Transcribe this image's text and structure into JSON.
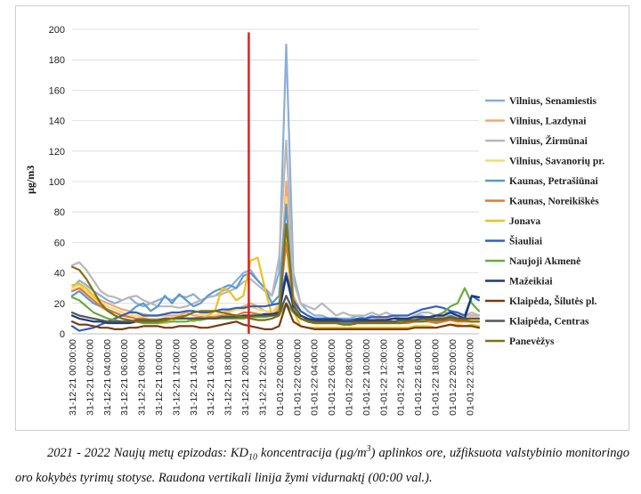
{
  "chart_data": {
    "type": "line",
    "ylabel": "µg/m3",
    "ylim": [
      0,
      200
    ],
    "yticks": [
      0,
      20,
      40,
      60,
      80,
      100,
      120,
      140,
      160,
      180,
      200
    ],
    "x_tick_labels": [
      "31-12-21 00:00:00",
      "31-12-21 02:00:00",
      "31-12-21 04:00:00",
      "31-12-21 06:00:00",
      "31-12-21 08:00:00",
      "31-12-21 10:00:00",
      "31-12-21 12:00:00",
      "31-12-21 14:00:00",
      "31-12-21 16:00:00",
      "31-12-21 18:00:00",
      "31-12-21 20:00:00",
      "31-12-21 22:00:00",
      "01-01-22 00:00:00",
      "01-01-22 02:00:00",
      "01-01-22 04:00:00",
      "01-01-22 06:00:00",
      "01-01-22 08:00:00",
      "01-01-22 10:00:00",
      "01-01-22 12:00:00",
      "01-01-22 14:00:00",
      "01-01-22 16:00:00",
      "01-01-22 18:00:00",
      "01-01-22 20:00:00",
      "01-01-22 22:00:00"
    ],
    "midnight_marker": {
      "x_index": 24,
      "top_value": 198,
      "color": "#e02020"
    },
    "grid": "horizontal",
    "legend_position": "right",
    "series": [
      {
        "name": "Vilnius, Senamiestis",
        "color": "#8aaedb",
        "values": [
          30,
          35,
          32,
          28,
          25,
          22,
          20,
          22,
          24,
          20,
          18,
          20,
          22,
          24,
          22,
          25,
          24,
          26,
          22,
          24,
          25,
          28,
          30,
          35,
          40,
          42,
          35,
          30,
          25,
          40,
          190,
          40,
          20,
          15,
          12,
          12,
          10,
          10,
          10,
          10,
          12,
          10,
          12,
          10,
          10,
          10,
          10,
          10,
          12,
          12,
          10,
          10,
          12,
          14,
          12,
          12,
          12,
          12
        ]
      },
      {
        "name": "Vilnius, Lazdynai",
        "color": "#f0a878",
        "values": [
          28,
          30,
          28,
          25,
          22,
          20,
          18,
          16,
          15,
          14,
          13,
          12,
          12,
          12,
          12,
          12,
          14,
          12,
          12,
          12,
          12,
          14,
          15,
          16,
          18,
          20,
          18,
          15,
          14,
          18,
          100,
          25,
          15,
          12,
          10,
          10,
          10,
          10,
          9,
          9,
          10,
          10,
          11,
          10,
          10,
          10,
          10,
          9,
          10,
          10,
          10,
          10,
          11,
          12,
          11,
          12,
          12,
          12
        ]
      },
      {
        "name": "Vilnius, Žirmūnai",
        "color": "#b8b8b8",
        "values": [
          45,
          47,
          42,
          35,
          28,
          25,
          24,
          22,
          24,
          25,
          22,
          20,
          18,
          18,
          18,
          17,
          18,
          20,
          22,
          24,
          25,
          26,
          28,
          30,
          34,
          36,
          32,
          28,
          25,
          50,
          127,
          35,
          20,
          18,
          16,
          20,
          16,
          12,
          14,
          12,
          12,
          12,
          14,
          12,
          14,
          12,
          10,
          10,
          12,
          14,
          14,
          12,
          14,
          14,
          14,
          12,
          14,
          12
        ]
      },
      {
        "name": "Vilnius, Savanorių pr.",
        "color": "#f4dc70",
        "values": [
          30,
          32,
          28,
          24,
          20,
          18,
          16,
          14,
          12,
          12,
          11,
          10,
          10,
          10,
          10,
          10,
          10,
          10,
          12,
          12,
          12,
          14,
          14,
          16,
          16,
          18,
          16,
          15,
          14,
          20,
          90,
          20,
          12,
          10,
          8,
          8,
          8,
          8,
          7,
          7,
          8,
          8,
          8,
          8,
          8,
          8,
          8,
          8,
          9,
          9,
          9,
          8,
          9,
          10,
          9,
          9,
          9,
          9
        ]
      },
      {
        "name": "Kaunas, Petrašiūnai",
        "color": "#5a98d0",
        "values": [
          25,
          28,
          24,
          20,
          18,
          16,
          14,
          12,
          14,
          18,
          20,
          15,
          18,
          25,
          20,
          26,
          22,
          18,
          20,
          25,
          28,
          30,
          32,
          30,
          38,
          40,
          35,
          30,
          20,
          25,
          85,
          20,
          12,
          10,
          8,
          8,
          8,
          8,
          7,
          7,
          8,
          8,
          8,
          9,
          9,
          8,
          8,
          8,
          9,
          9,
          9,
          8,
          9,
          12,
          10,
          10,
          10,
          10
        ]
      },
      {
        "name": "Kaunas, Noreikiškės",
        "color": "#e07830",
        "values": [
          28,
          30,
          26,
          22,
          18,
          15,
          14,
          12,
          11,
          10,
          10,
          9,
          9,
          9,
          10,
          10,
          10,
          10,
          11,
          11,
          11,
          12,
          12,
          12,
          14,
          14,
          13,
          12,
          12,
          16,
          60,
          16,
          10,
          8,
          7,
          7,
          7,
          7,
          6,
          6,
          7,
          7,
          7,
          7,
          7,
          7,
          7,
          7,
          8,
          8,
          8,
          7,
          8,
          9,
          8,
          8,
          8,
          8
        ]
      },
      {
        "name": "Jonava",
        "color": "#f0c020",
        "values": [
          32,
          33,
          30,
          25,
          20,
          15,
          12,
          10,
          8,
          8,
          7,
          7,
          7,
          7,
          8,
          12,
          10,
          8,
          10,
          12,
          15,
          30,
          28,
          22,
          25,
          48,
          50,
          30,
          12,
          15,
          70,
          15,
          5,
          4,
          4,
          4,
          4,
          4,
          4,
          4,
          4,
          4,
          4,
          4,
          4,
          4,
          4,
          4,
          5,
          5,
          5,
          4,
          5,
          6,
          6,
          5,
          6,
          5
        ]
      },
      {
        "name": "Šiauliai",
        "color": "#3060c0",
        "values": [
          5,
          2,
          3,
          4,
          6,
          8,
          10,
          12,
          14,
          14,
          12,
          12,
          12,
          13,
          14,
          14,
          15,
          15,
          14,
          14,
          15,
          16,
          16,
          17,
          17,
          18,
          18,
          18,
          19,
          20,
          40,
          22,
          15,
          12,
          10,
          10,
          10,
          10,
          9,
          9,
          10,
          10,
          11,
          11,
          11,
          12,
          12,
          12,
          14,
          16,
          17,
          18,
          17,
          15,
          14,
          12,
          25,
          22
        ]
      },
      {
        "name": "Naujoji Akmenė",
        "color": "#6aaa40",
        "values": [
          24,
          22,
          18,
          14,
          12,
          10,
          9,
          8,
          8,
          8,
          7,
          7,
          7,
          8,
          8,
          8,
          8,
          9,
          9,
          10,
          10,
          10,
          10,
          10,
          10,
          11,
          11,
          11,
          12,
          12,
          20,
          14,
          10,
          8,
          7,
          7,
          7,
          7,
          6,
          6,
          7,
          7,
          7,
          7,
          7,
          8,
          8,
          8,
          9,
          10,
          10,
          12,
          14,
          18,
          20,
          30,
          20,
          15
        ]
      },
      {
        "name": "Mažeikiai",
        "color": "#1a3a78",
        "values": [
          12,
          10,
          9,
          8,
          8,
          7,
          7,
          7,
          7,
          8,
          8,
          8,
          9,
          9,
          10,
          10,
          10,
          10,
          10,
          10,
          10,
          11,
          11,
          11,
          12,
          12,
          12,
          13,
          13,
          14,
          38,
          18,
          12,
          10,
          9,
          9,
          9,
          9,
          8,
          8,
          9,
          9,
          9,
          9,
          9,
          10,
          10,
          10,
          11,
          11,
          11,
          12,
          12,
          14,
          12,
          10,
          25,
          24
        ]
      },
      {
        "name": "Klaipėda, Šilutės pl.",
        "color": "#7a3a10",
        "values": [
          8,
          6,
          6,
          5,
          4,
          4,
          3,
          3,
          4,
          4,
          5,
          5,
          5,
          4,
          4,
          5,
          5,
          5,
          4,
          4,
          5,
          6,
          7,
          8,
          6,
          5,
          4,
          3,
          3,
          5,
          20,
          8,
          5,
          4,
          3,
          3,
          3,
          3,
          3,
          3,
          3,
          3,
          3,
          3,
          3,
          3,
          3,
          3,
          4,
          4,
          4,
          4,
          5,
          6,
          5,
          5,
          5,
          4
        ]
      },
      {
        "name": "Klaipėda, Centras",
        "color": "#555555",
        "values": [
          14,
          12,
          11,
          10,
          9,
          8,
          8,
          8,
          8,
          9,
          9,
          9,
          9,
          10,
          10,
          10,
          10,
          10,
          10,
          10,
          10,
          11,
          11,
          11,
          11,
          12,
          12,
          12,
          12,
          13,
          25,
          15,
          10,
          9,
          8,
          8,
          8,
          8,
          8,
          8,
          8,
          8,
          8,
          8,
          8,
          8,
          9,
          9,
          9,
          10,
          10,
          10,
          10,
          11,
          10,
          10,
          10,
          10
        ]
      },
      {
        "name": "Panevėžys",
        "color": "#807010",
        "values": [
          44,
          42,
          36,
          28,
          20,
          15,
          12,
          10,
          9,
          8,
          8,
          8,
          8,
          9,
          10,
          11,
          12,
          14,
          15,
          15,
          15,
          14,
          13,
          12,
          11,
          10,
          9,
          9,
          10,
          12,
          72,
          20,
          10,
          8,
          7,
          7,
          7,
          7,
          6,
          6,
          7,
          7,
          7,
          7,
          7,
          7,
          7,
          8,
          8,
          8,
          9,
          9,
          9,
          10,
          9,
          9,
          8,
          8
        ]
      }
    ]
  },
  "caption": {
    "prefix": "2021 - 2022 Naujų metų epizodas: KD",
    "subscript": "10",
    "mid": " koncentracija (µg/m",
    "superscript": "3",
    "suffix": ") aplinkos ore, užfiksuota valstybinio monitoringo oro kokybės tyrimų stotyse. Raudona vertikali linija žymi vidurnaktį (00:00 val.)."
  }
}
